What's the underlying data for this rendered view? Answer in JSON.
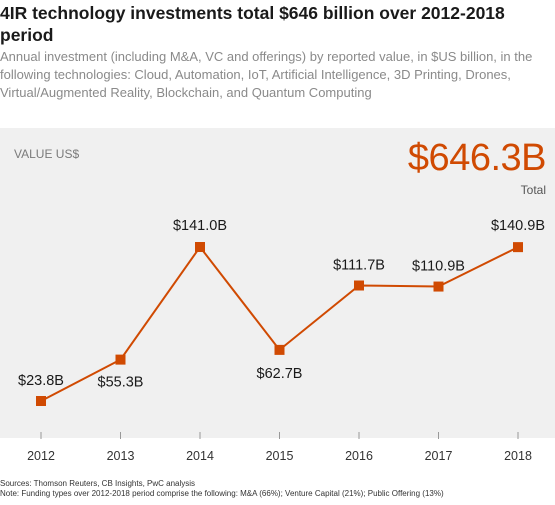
{
  "title": "4IR technology investments total $646 billion over 2012-2018 period",
  "subtitle": "Annual investment (including M&A, VC and offerings) by reported value, in $US billion, in the following technologies: Cloud, Automation, IoT, Artificial Intelligence, 3D Printing, Drones, Virtual/Augmented Reality, Blockchain, and Quantum Computing",
  "value_label": "VALUE US$",
  "total_value": "$646.3B",
  "total_label": "Total",
  "sources": "Sources: Thomson Reuters, CB Insights, PwC analysis",
  "note": "Note: Funding types over 2012-2018 period comprise the following: M&A (66%); Venture Capital (21%); Public Offering (13%)",
  "colors": {
    "accent": "#d04a02",
    "panel": "#f0f0f0",
    "axis": "#999999"
  },
  "chart_data": {
    "type": "line",
    "title": "4IR technology investments total $646 billion over 2012-2018 period",
    "ylabel": "VALUE US$",
    "x": [
      "2012",
      "2013",
      "2014",
      "2015",
      "2016",
      "2017",
      "2018"
    ],
    "values": [
      23.8,
      55.3,
      141.0,
      62.7,
      111.7,
      110.9,
      140.9
    ],
    "data_labels": [
      "$23.8B",
      "$55.3B",
      "$141.0B",
      "$62.7B",
      "$111.7B",
      "$110.9B",
      "$140.9B"
    ],
    "ylim": [
      0,
      180
    ],
    "grid": false,
    "legend": "none"
  }
}
